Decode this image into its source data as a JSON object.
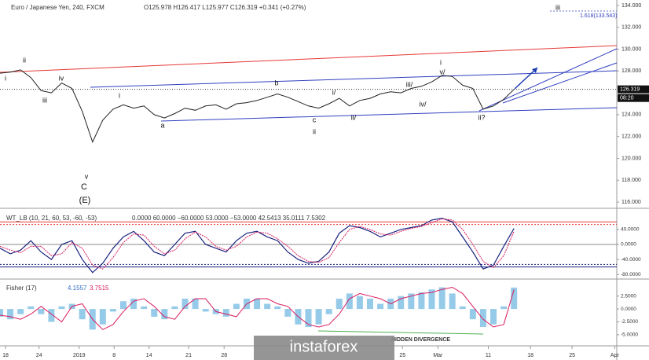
{
  "chart_data": {
    "type": "line",
    "title": "Euro / Japanese Yen, 240, FXCM",
    "ohlc": "O125.978 H126.417 L125.977 C126.319 +0.341 (+0.27%)",
    "last_price": {
      "value": 126.319,
      "label": "126.319"
    },
    "time_label": "08:20",
    "x": [
      0,
      2,
      4,
      6,
      8,
      10,
      12,
      14,
      16,
      18,
      20,
      22,
      24,
      26,
      28,
      30,
      32,
      34,
      36,
      38,
      40,
      42,
      44,
      46,
      48,
      50,
      52,
      54,
      56,
      58,
      60,
      62,
      64,
      66,
      68,
      70,
      72,
      74,
      76,
      78,
      80,
      82,
      84,
      86,
      88,
      90,
      92,
      94,
      96,
      98,
      100
    ],
    "xlim": [
      0,
      120
    ],
    "xticks": [
      {
        "value": 1.07,
        "label": "18"
      },
      {
        "value": 7.6,
        "label": "24"
      },
      {
        "value": 15.4,
        "label": "2019"
      },
      {
        "value": 22.2,
        "label": "8"
      },
      {
        "value": 29,
        "label": "14"
      },
      {
        "value": 36.7,
        "label": "21"
      },
      {
        "value": 43.6,
        "label": "28"
      },
      {
        "value": 78.3,
        "label": "25"
      },
      {
        "value": 85.2,
        "label": "Mar"
      },
      {
        "value": 95,
        "label": "11"
      },
      {
        "value": 103.2,
        "label": "18"
      },
      {
        "value": 111.3,
        "label": "25"
      },
      {
        "value": 119.6,
        "label": "Apr"
      }
    ],
    "series": [
      {
        "name": "Price",
        "color": "#222222",
        "values": [
          127.8,
          127.9,
          128.1,
          127.4,
          126.2,
          126.0,
          126.9,
          126.4,
          124.3,
          121.5,
          123.5,
          124.5,
          124.9,
          124.6,
          124.8,
          124.0,
          123.7,
          124.1,
          124.6,
          124.4,
          124.8,
          124.9,
          124.5,
          125.0,
          125.1,
          125.3,
          125.6,
          125.9,
          125.6,
          125.2,
          124.8,
          124.6,
          125.0,
          125.5,
          124.8,
          125.3,
          125.5,
          125.9,
          126.1,
          126.0,
          126.4,
          126.6,
          127.0,
          127.6,
          127.5,
          126.7,
          126.4,
          124.5,
          124.8,
          125.4,
          126.319
        ]
      }
    ],
    "ylim": [
      115.5,
      134.5
    ],
    "yticks": [
      {
        "value": 116,
        "label": "116.000"
      },
      {
        "value": 118,
        "label": "118.000"
      },
      {
        "value": 120,
        "label": "120.000"
      },
      {
        "value": 122,
        "label": "122.000"
      },
      {
        "value": 124,
        "label": "124.000"
      },
      {
        "value": 128,
        "label": "128.000"
      },
      {
        "value": 130,
        "label": "130.000"
      },
      {
        "value": 132,
        "label": "132.000"
      },
      {
        "value": 134,
        "label": "134.000"
      }
    ],
    "annotations": [
      "i",
      "ii",
      "iii",
      "iv",
      "i",
      "v",
      "C",
      "(E)",
      "a",
      "b",
      "c",
      "ii",
      "i/",
      "ii/",
      "iii/",
      "iv/",
      "v/",
      "i",
      "ii?",
      "iii",
      "1.618(133.543)"
    ],
    "wt": {
      "title": "WT_LB (10, 21, 60, 53, -60, -53)",
      "readout": "0.0000 60.0000 −60.0000 53.0000 −53.0000 42.5413 35.0111 7.5302",
      "ylim": [
        -90,
        90
      ],
      "yticks": [
        {
          "value": 40,
          "label": "40.0000"
        },
        {
          "value": 0,
          "label": "0.0000"
        },
        {
          "value": -40,
          "label": "-40.0000"
        },
        {
          "value": -80,
          "label": "-80.0000"
        }
      ],
      "levels": [
        60,
        -60,
        53,
        -53
      ],
      "series": [
        {
          "name": "WT1",
          "color": "#1a237e",
          "values": [
            -10,
            -25,
            -15,
            10,
            -20,
            -40,
            0,
            10,
            -40,
            -75,
            -50,
            -10,
            20,
            35,
            10,
            -20,
            -30,
            0,
            30,
            35,
            0,
            -10,
            -20,
            10,
            30,
            35,
            20,
            10,
            -20,
            -40,
            -50,
            -45,
            -20,
            30,
            50,
            45,
            35,
            20,
            30,
            40,
            45,
            50,
            65,
            70,
            60,
            20,
            -20,
            -65,
            -55,
            -5,
            42.5413
          ]
        },
        {
          "name": "WT2",
          "color": "#d81b60",
          "values": [
            -5,
            -15,
            -22,
            -5,
            -5,
            -30,
            -25,
            5,
            -10,
            -55,
            -65,
            -35,
            5,
            28,
            25,
            -5,
            -25,
            -15,
            15,
            33,
            20,
            -5,
            -15,
            -5,
            20,
            33,
            30,
            15,
            -5,
            -30,
            -45,
            -48,
            -35,
            5,
            40,
            48,
            40,
            28,
            25,
            35,
            43,
            48,
            58,
            68,
            65,
            40,
            0,
            -45,
            -62,
            -30,
            35.0111
          ]
        }
      ]
    },
    "fisher": {
      "title": "Fisher (17)",
      "readout": "4.1557",
      "readout2": "3.7515",
      "ylim": [
        -7,
        5.5
      ],
      "yticks": [
        {
          "value": 2.5,
          "label": "2.5000"
        },
        {
          "value": 0,
          "label": "0.0000"
        },
        {
          "value": -2.5,
          "label": "-2.5000"
        },
        {
          "value": -5,
          "label": "-5.0000"
        }
      ],
      "series": [
        {
          "name": "Fisher",
          "color": "#4fa8d8",
          "values": [
            -1.5,
            -2,
            -1,
            0.5,
            -1,
            -2.5,
            0.5,
            1,
            -2,
            -4,
            -3,
            -0.5,
            1.5,
            2,
            0.5,
            -1.5,
            -2,
            0.5,
            2,
            2,
            -0.5,
            -1,
            -1.5,
            1,
            2,
            2,
            1,
            0.5,
            -1.5,
            -3,
            -3.5,
            -3,
            -1,
            2,
            3,
            2.5,
            2,
            1,
            2,
            2.5,
            3,
            3.2,
            3.8,
            4.2,
            3,
            0.5,
            -2,
            -3.5,
            -3,
            0.5,
            4.1557
          ]
        },
        {
          "name": "Trigger",
          "color": "#d81b60",
          "values": [
            -1.2,
            -1.5,
            -2,
            -1,
            0.5,
            -1,
            -2.5,
            0.5,
            1,
            -2,
            -4,
            -3,
            -0.5,
            1.5,
            2,
            0.5,
            -1.5,
            -2,
            0.5,
            2,
            2,
            -0.5,
            -1,
            -1.5,
            1,
            2,
            2,
            1,
            0.5,
            -1.5,
            -3,
            -3.5,
            -3,
            -1,
            2,
            3,
            2.5,
            2,
            1,
            2,
            2.5,
            3,
            3.2,
            3.8,
            4.2,
            3,
            0.5,
            -2,
            -3.5,
            -3,
            3.7515
          ]
        }
      ],
      "annotation": "HIDDEN DIVERGENCE"
    },
    "watermark": "instaforex"
  }
}
